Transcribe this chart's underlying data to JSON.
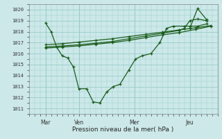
{
  "xlabel": "Pression niveau de la mer( hPa )",
  "bg_color": "#cce8e8",
  "grid_color": "#99cccc",
  "line_color": "#1a5c1a",
  "ylim": [
    1010.5,
    1020.5
  ],
  "xlim": [
    0.0,
    8.5
  ],
  "xtick_positions": [
    0.75,
    2.25,
    4.75,
    7.25
  ],
  "xtick_labels": [
    "Mar",
    "Ven",
    "Mer",
    "Jeu"
  ],
  "ytick_positions": [
    1011,
    1012,
    1013,
    1014,
    1015,
    1016,
    1017,
    1018,
    1019,
    1020
  ],
  "vline_positions": [
    0.75,
    2.25,
    4.75,
    7.25
  ],
  "series1_x": [
    0.75,
    1.0,
    1.25,
    1.5,
    1.75,
    2.0,
    2.25,
    2.6,
    2.9,
    3.2,
    3.5,
    3.8,
    4.1,
    4.5,
    4.8,
    5.1,
    5.5,
    5.9,
    6.2,
    6.5,
    7.0,
    7.25,
    7.6,
    8.0
  ],
  "series1_y": [
    1018.8,
    1018.0,
    1016.6,
    1015.8,
    1015.6,
    1014.8,
    1012.8,
    1012.8,
    1011.6,
    1011.5,
    1012.5,
    1013.0,
    1013.2,
    1014.5,
    1015.5,
    1015.8,
    1016.0,
    1017.0,
    1018.3,
    1018.5,
    1018.5,
    1018.5,
    1018.5,
    1018.7
  ],
  "series2_x": [
    0.75,
    1.5,
    2.25,
    3.0,
    3.75,
    4.5,
    5.25,
    6.0,
    6.75,
    7.5,
    8.2
  ],
  "series2_y": [
    1016.5,
    1016.6,
    1016.7,
    1016.85,
    1017.0,
    1017.2,
    1017.45,
    1017.7,
    1017.9,
    1018.2,
    1018.5
  ],
  "series3_x": [
    0.75,
    1.5,
    2.25,
    3.0,
    3.75,
    4.5,
    5.25,
    6.0,
    6.75,
    7.5,
    8.2
  ],
  "series3_y": [
    1016.8,
    1016.9,
    1017.05,
    1017.2,
    1017.35,
    1017.55,
    1017.75,
    1017.95,
    1018.15,
    1018.35,
    1018.55
  ],
  "series4_x": [
    0.75,
    1.5,
    2.25,
    3.0,
    3.75,
    4.5,
    5.25,
    6.0,
    6.75,
    7.0,
    7.25,
    7.6,
    8.0
  ],
  "series4_y": [
    1016.6,
    1016.7,
    1016.8,
    1016.95,
    1017.1,
    1017.35,
    1017.6,
    1017.85,
    1018.1,
    1018.3,
    1019.0,
    1019.15,
    1019.0
  ],
  "series5_x": [
    7.25,
    7.6,
    8.0
  ],
  "series5_y": [
    1018.3,
    1020.1,
    1019.1
  ]
}
